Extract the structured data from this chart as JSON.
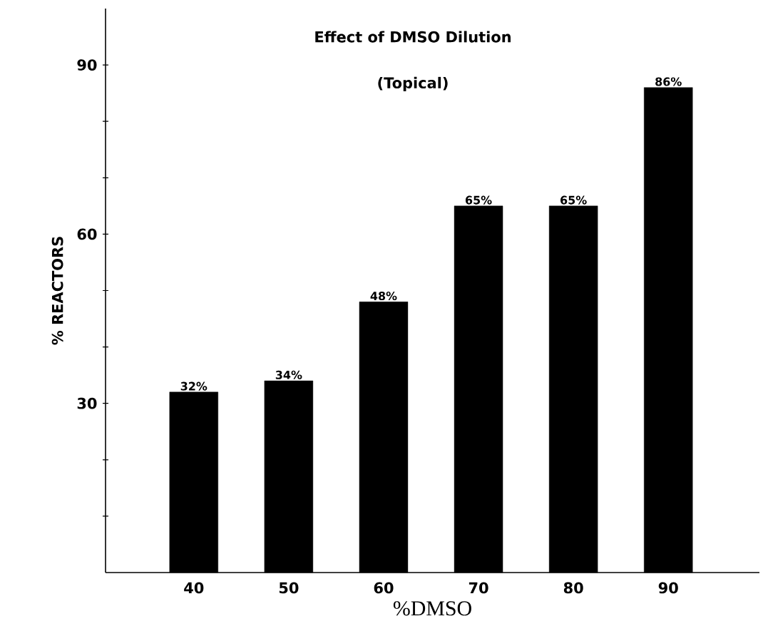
{
  "chart_data": {
    "type": "bar",
    "title": "Effect of DMSO Dilution",
    "subtitle": "(Topical)",
    "xlabel": "%DMSO",
    "ylabel": "% REACTORS",
    "categories": [
      "40",
      "50",
      "60",
      "70",
      "80",
      "90"
    ],
    "values": [
      32,
      34,
      48,
      65,
      65,
      86
    ],
    "value_labels": [
      "32%",
      "34%",
      "48%",
      "65%",
      "65%",
      "86%"
    ],
    "color": "#000000",
    "ylim": [
      0,
      100
    ],
    "yticks": [
      {
        "value": 10,
        "label": null
      },
      {
        "value": 20,
        "label": null
      },
      30,
      {
        "value": 40,
        "label": null
      },
      {
        "value": 50,
        "label": null
      },
      60,
      {
        "value": 70,
        "label": null
      },
      {
        "value": 80,
        "label": null
      },
      90
    ],
    "line_style": "solid"
  }
}
